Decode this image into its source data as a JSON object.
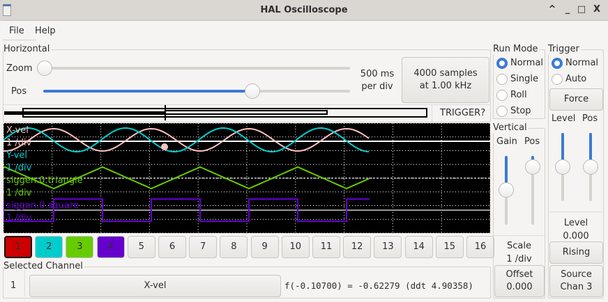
{
  "window": {
    "title": "HAL Oscilloscope",
    "controls": [
      "^",
      "_",
      "□",
      "X"
    ]
  },
  "menu": {
    "file": "File",
    "help": "Help"
  },
  "horizontal": {
    "label": "Horizontal",
    "zoom_label": "Zoom",
    "pos_label": "Pos",
    "zoom_value": 0,
    "pos_value": 0.63,
    "rate_line1": "500 ms",
    "rate_line2": "per div",
    "samples_line1": "4000 samples",
    "samples_line2": "at 1.00 kHz",
    "trigger_status": "TRIGGER?"
  },
  "run_mode": {
    "label": "Run Mode",
    "options": [
      "Normal",
      "Single",
      "Roll",
      "Stop"
    ],
    "selected": "Normal"
  },
  "trigger": {
    "label": "Trigger",
    "options": [
      "Normal",
      "Auto"
    ],
    "selected": "Normal",
    "force": "Force",
    "level_label": "Level",
    "pos_label": "Pos",
    "level_value": 0.5,
    "pos_value": 0.5,
    "level_title": "Level",
    "level_readout": "0.000",
    "edge": "Rising",
    "source_line1": "Source",
    "source_line2": "Chan 3"
  },
  "vertical": {
    "label": "Vertical",
    "gain_label": "Gain",
    "pos_label": "Pos",
    "gain_value": 0.5,
    "pos_value": 0.95,
    "scale_title": "Scale",
    "scale_value": "1 /div",
    "offset_line1": "Offset",
    "offset_line2": "0.000"
  },
  "channels": [
    {
      "num": "1",
      "name": "X-vel",
      "scale": "1 /div",
      "color": "#ffc0c0",
      "button_color": "#cc0000"
    },
    {
      "num": "2",
      "name": "Y-vel",
      "scale": "1 /div",
      "color": "#00d0d0",
      "button_color": "#00cccc"
    },
    {
      "num": "3",
      "name": "siggen.0.triangle",
      "scale": "1 /div",
      "color": "#66cc00",
      "button_color": "#66cc00"
    },
    {
      "num": "4",
      "name": "siggen.0.square",
      "scale": "1 /div",
      "color": "#6600cc",
      "button_color": "#6600cc"
    },
    {
      "num": "5"
    },
    {
      "num": "6"
    },
    {
      "num": "7"
    },
    {
      "num": "8"
    },
    {
      "num": "9"
    },
    {
      "num": "10"
    },
    {
      "num": "11"
    },
    {
      "num": "12"
    },
    {
      "num": "13"
    },
    {
      "num": "14"
    },
    {
      "num": "15"
    },
    {
      "num": "16"
    }
  ],
  "selected_channel": {
    "label": "Selected Channel",
    "num": "1",
    "name": "X-vel",
    "readout": "f(-0.10700) = -0.62279 (ddt  4.90358)"
  }
}
